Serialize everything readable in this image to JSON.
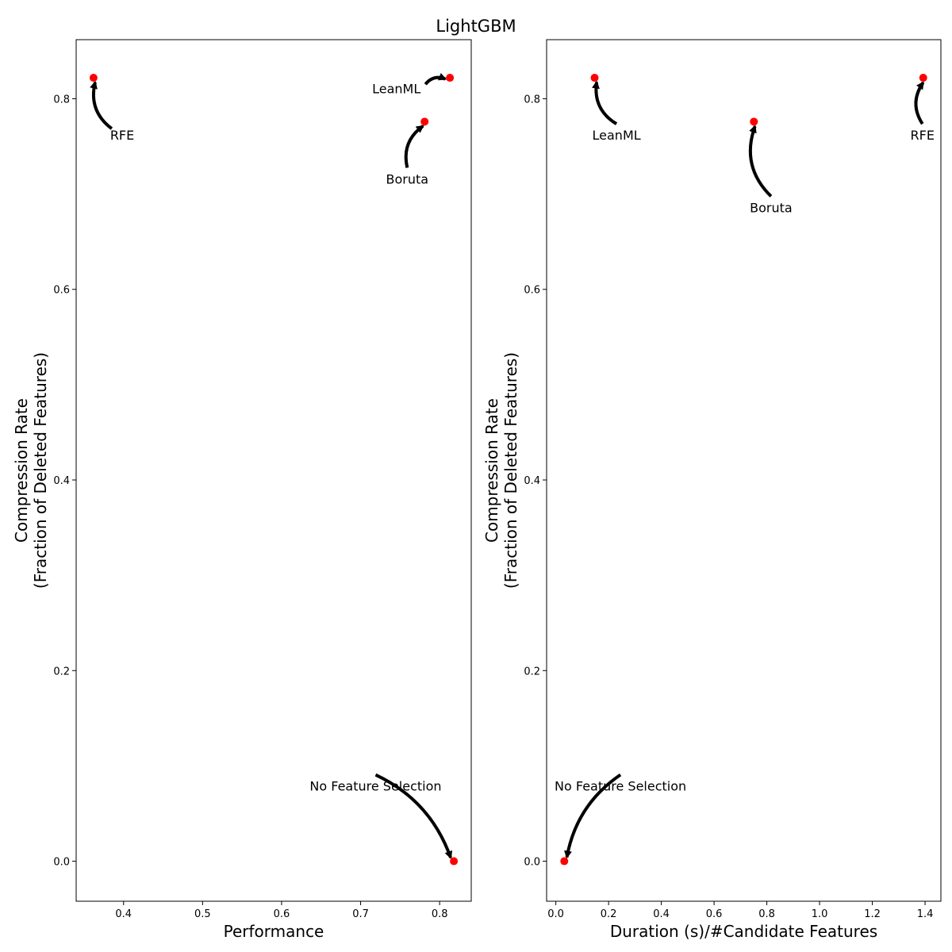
{
  "figure": {
    "title": "LightGBM"
  },
  "colors": {
    "point": "#ff0000",
    "axes": "#000000",
    "arrow": "#000000"
  },
  "chart_data": [
    {
      "type": "scatter",
      "title": "",
      "xlabel": "Performance",
      "ylabel": [
        "Compression Rate",
        "(Fraction of Deleted Features)"
      ],
      "xlim": [
        0.34,
        0.84
      ],
      "ylim": [
        -0.042,
        0.862
      ],
      "xticks": [
        0.4,
        0.5,
        0.6,
        0.7,
        0.8
      ],
      "xtick_labels": [
        "0.4",
        "0.5",
        "0.6",
        "0.7",
        "0.8"
      ],
      "yticks": [
        0.0,
        0.2,
        0.4,
        0.6,
        0.8
      ],
      "ytick_labels": [
        "0.0",
        "0.2",
        "0.4",
        "0.6",
        "0.8"
      ],
      "grid": false,
      "points": [
        {
          "label": "RFE",
          "x": 0.362,
          "y": 0.822,
          "text_x": 0.383,
          "text_y": 0.757,
          "text_anchor": "start",
          "curve": -0.3
        },
        {
          "label": "LeanML",
          "x": 0.813,
          "y": 0.822,
          "text_x": 0.776,
          "text_y": 0.806,
          "text_anchor": "end",
          "curve": -0.3
        },
        {
          "label": "Boruta",
          "x": 0.781,
          "y": 0.776,
          "text_x": 0.759,
          "text_y": 0.711,
          "text_anchor": "middle",
          "curve": -0.3
        },
        {
          "label": "No Feature Selection",
          "x": 0.818,
          "y": 0.0,
          "text_x": 0.719,
          "text_y": 0.074,
          "text_anchor": "middle",
          "curve": -0.2
        }
      ]
    },
    {
      "type": "scatter",
      "title": "",
      "xlabel": "Duration (s)/#Candidate Features",
      "ylabel": [
        "Compression Rate",
        "(Fraction of Deleted Features)"
      ],
      "xlim": [
        -0.035,
        1.46
      ],
      "ylim": [
        -0.042,
        0.862
      ],
      "xticks": [
        0.0,
        0.2,
        0.4,
        0.6,
        0.8,
        1.0,
        1.2,
        1.4
      ],
      "xtick_labels": [
        "0.0",
        "0.2",
        "0.4",
        "0.6",
        "0.8",
        "1.0",
        "1.2",
        "1.4"
      ],
      "yticks": [
        0.0,
        0.2,
        0.4,
        0.6,
        0.8
      ],
      "ytick_labels": [
        "0.0",
        "0.2",
        "0.4",
        "0.6",
        "0.8"
      ],
      "grid": false,
      "points": [
        {
          "label": "LeanML",
          "x": 0.147,
          "y": 0.822,
          "text_x": 0.23,
          "text_y": 0.757,
          "text_anchor": "middle",
          "curve": -0.3
        },
        {
          "label": "Boruta",
          "x": 0.751,
          "y": 0.776,
          "text_x": 0.816,
          "text_y": 0.681,
          "text_anchor": "middle",
          "curve": -0.3
        },
        {
          "label": "RFE",
          "x": 1.393,
          "y": 0.822,
          "text_x": 1.39,
          "text_y": 0.757,
          "text_anchor": "middle",
          "curve": -0.3
        },
        {
          "label": "No Feature Selection",
          "x": 0.032,
          "y": 0.0,
          "text_x": 0.245,
          "text_y": 0.074,
          "text_anchor": "middle",
          "curve": 0.2
        }
      ]
    }
  ]
}
